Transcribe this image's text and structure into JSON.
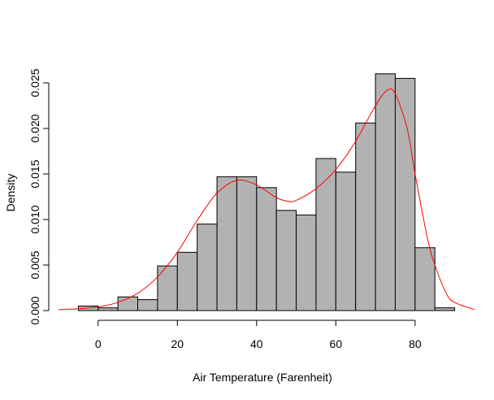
{
  "chart_data": {
    "type": "bar",
    "title": "",
    "xlabel": "Air Temperature (Farenheit)",
    "ylabel": "Density",
    "xlim": [
      -10,
      95
    ],
    "ylim": [
      0,
      0.025
    ],
    "x_ticks": [
      {
        "value": 0,
        "label": "0"
      },
      {
        "value": 20,
        "label": "20"
      },
      {
        "value": 40,
        "label": "40"
      },
      {
        "value": 60,
        "label": "60"
      },
      {
        "value": 80,
        "label": "80"
      }
    ],
    "y_ticks": [
      {
        "value": 0.0,
        "label": "0.000"
      },
      {
        "value": 0.005,
        "label": "0.005"
      },
      {
        "value": 0.01,
        "label": "0.010"
      },
      {
        "value": 0.015,
        "label": "0.015"
      },
      {
        "value": 0.02,
        "label": "0.020"
      },
      {
        "value": 0.025,
        "label": "0.025"
      }
    ],
    "bin_width": 5,
    "bins": [
      {
        "start": -5,
        "end": 0,
        "density": 0.0005
      },
      {
        "start": 0,
        "end": 5,
        "density": 0.0003
      },
      {
        "start": 5,
        "end": 10,
        "density": 0.0015
      },
      {
        "start": 10,
        "end": 15,
        "density": 0.0012
      },
      {
        "start": 15,
        "end": 20,
        "density": 0.0049
      },
      {
        "start": 20,
        "end": 25,
        "density": 0.0064
      },
      {
        "start": 25,
        "end": 30,
        "density": 0.0095
      },
      {
        "start": 30,
        "end": 35,
        "density": 0.0147
      },
      {
        "start": 35,
        "end": 40,
        "density": 0.0147
      },
      {
        "start": 40,
        "end": 45,
        "density": 0.0135
      },
      {
        "start": 45,
        "end": 50,
        "density": 0.011
      },
      {
        "start": 50,
        "end": 55,
        "density": 0.0105
      },
      {
        "start": 55,
        "end": 60,
        "density": 0.0167
      },
      {
        "start": 60,
        "end": 65,
        "density": 0.0152
      },
      {
        "start": 65,
        "end": 70,
        "density": 0.0206
      },
      {
        "start": 70,
        "end": 75,
        "density": 0.026
      },
      {
        "start": 75,
        "end": 80,
        "density": 0.0255
      },
      {
        "start": 80,
        "end": 85,
        "density": 0.0069
      },
      {
        "start": 85,
        "end": 90,
        "density": 0.0003
      }
    ],
    "density_curve": {
      "color": "#ff0000",
      "x": [
        -10,
        -5,
        0,
        5,
        10,
        15,
        20,
        25,
        30,
        35,
        40,
        45,
        48,
        50,
        55,
        60,
        65,
        70,
        73,
        75,
        78,
        80,
        83,
        85,
        88,
        90,
        95
      ],
      "y": [
        0.0001,
        0.0002,
        0.0004,
        0.0009,
        0.0019,
        0.0037,
        0.0064,
        0.0099,
        0.0129,
        0.0143,
        0.0138,
        0.0124,
        0.012,
        0.0121,
        0.0134,
        0.0155,
        0.0186,
        0.0225,
        0.0242,
        0.0238,
        0.02,
        0.015,
        0.0082,
        0.005,
        0.0018,
        0.0009,
        0.0001
      ]
    },
    "bar_fill": "#b2b2b2",
    "bar_stroke": "#000000",
    "grid": false,
    "legend": "none"
  }
}
